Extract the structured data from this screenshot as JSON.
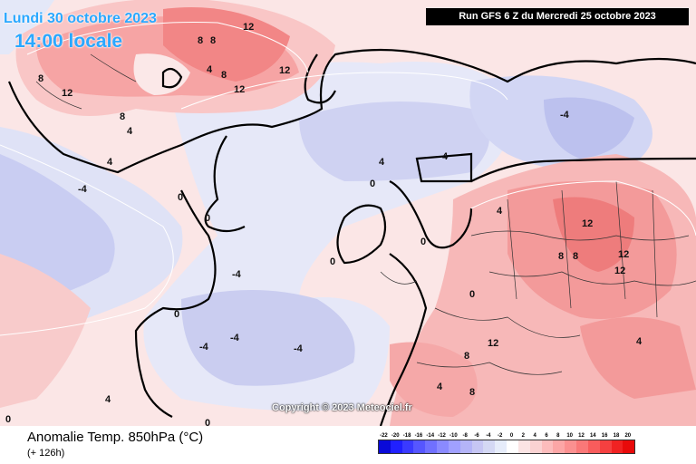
{
  "header": {
    "date": "Lundi 30 octobre 2023",
    "time": "14:00 locale",
    "run": "Run GFS 6 Z du Mercredi 25 octobre 2023"
  },
  "footer": {
    "title": "Anomalie Temp. 850hPa (°C)",
    "subtitle": "(+ 126h)",
    "copyright": "Copyright © 2023 Meteociel.fr"
  },
  "legend": {
    "labels": [
      "-22",
      "-20",
      "-18",
      "-16",
      "-14",
      "-12",
      "-10",
      "-8",
      "-6",
      "-4",
      "-2",
      "0",
      "2",
      "4",
      "6",
      "8",
      "10",
      "12",
      "14",
      "16",
      "18",
      "20"
    ],
    "colors": [
      "#0a0ad8",
      "#2020ff",
      "#3a3aff",
      "#5656ff",
      "#7070ff",
      "#8a8aff",
      "#a0a0ff",
      "#b4b4f8",
      "#c6c6f4",
      "#d4d8f4",
      "#e6ecfa",
      "#ffffff",
      "#fbe4e4",
      "#fad2d2",
      "#fcbcbc",
      "#fca6a6",
      "#fb9090",
      "#fa7878",
      "#f85c5c",
      "#f54040",
      "#f02222",
      "#e80a0a"
    ]
  },
  "contour_labels": [
    "12",
    "12",
    "12",
    "12",
    "8",
    "8",
    "8",
    "8",
    "8",
    "4",
    "4",
    "4",
    "4",
    "4",
    "0",
    "0",
    "0",
    "0",
    "0",
    "0",
    "0",
    "-4",
    "-4",
    "-4",
    "-4",
    "-4",
    "-4",
    "12",
    "12",
    "12",
    "12",
    "8",
    "8",
    "8",
    "8",
    "4",
    "4",
    "4",
    "4",
    "0",
    "0"
  ]
}
